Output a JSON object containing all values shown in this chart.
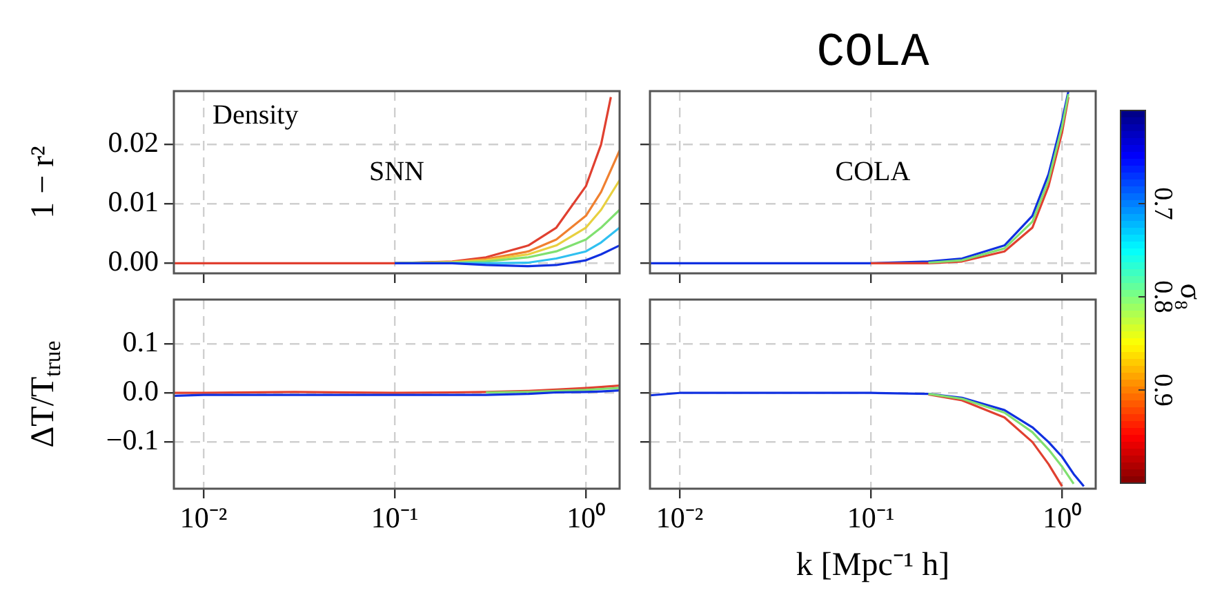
{
  "chart_data": [
    {
      "type": "line",
      "ylabel": "1 − r²",
      "annotations": [
        "Density",
        "SNN"
      ],
      "log": "x",
      "grid": true,
      "tick_labels": "y",
      "xlim": [
        0.007,
        1.5
      ],
      "ylim": [
        -0.0017,
        0.029
      ],
      "xticks": [
        {
          "value": 0.01,
          "label": null
        },
        {
          "value": 0.1,
          "label": null
        },
        {
          "value": 1,
          "label": null
        }
      ],
      "yticks": [
        {
          "value": 0,
          "label": "0.00"
        },
        {
          "value": 0.01,
          "label": "0.01"
        },
        {
          "value": 0.02,
          "label": "0.02"
        }
      ],
      "x": [
        0.1,
        0.2,
        0.3,
        0.5,
        0.7,
        1.0,
        1.2,
        1.5
      ],
      "series": [
        {
          "color": "#1030e0",
          "values": [
            0,
            0,
            -0.0003,
            -0.0005,
            -0.0003,
            0.0005,
            0.0015,
            0.003
          ]
        },
        {
          "color": "#30c0f0",
          "values": [
            0,
            0,
            0,
            0.0001,
            0.0008,
            0.002,
            0.0035,
            0.006
          ]
        },
        {
          "color": "#80e070",
          "values": [
            0,
            0.0001,
            0.0003,
            0.001,
            0.002,
            0.004,
            0.006,
            0.009
          ]
        },
        {
          "color": "#e8d040",
          "values": [
            0,
            0.0002,
            0.0005,
            0.0015,
            0.003,
            0.006,
            0.009,
            0.014
          ]
        },
        {
          "color": "#f08030",
          "values": [
            0,
            0.0002,
            0.0007,
            0.002,
            0.004,
            0.008,
            0.012,
            0.019
          ]
        },
        {
          "color": "#e04030",
          "x": [
            0.007,
            0.01,
            0.03,
            0.1,
            0.2,
            0.3,
            0.5,
            0.7,
            1.0,
            1.2,
            1.35
          ],
          "values": [
            0,
            0,
            0,
            0,
            0.0003,
            0.001,
            0.003,
            0.006,
            0.013,
            0.02,
            0.028
          ]
        }
      ]
    },
    {
      "type": "line",
      "title": "COLA",
      "annotations": [
        "COLA"
      ],
      "log": "x",
      "grid": true,
      "tick_labels": false,
      "xlim": [
        0.007,
        1.5
      ],
      "ylim": [
        -0.0017,
        0.029
      ],
      "clabel": "σ₈",
      "clim": [
        1.0,
        0.6
      ],
      "cticks": [
        0.7,
        0.8,
        0.9
      ],
      "xticks": [
        {
          "value": 0.01,
          "label": null
        },
        {
          "value": 0.1,
          "label": null
        },
        {
          "value": 1,
          "label": null
        }
      ],
      "yticks": [
        {
          "value": 0,
          "label": null
        },
        {
          "value": 0.01,
          "label": null
        },
        {
          "value": 0.02,
          "label": null
        }
      ],
      "x": [
        0.007,
        0.01,
        0.1,
        0.2,
        0.3,
        0.5,
        0.7,
        0.85,
        1.0,
        1.08
      ],
      "series": [
        {
          "color": "#80e070",
          "values": [
            null,
            null,
            null,
            0.0001,
            0.0005,
            0.0025,
            0.007,
            0.014,
            0.023,
            0.0285
          ]
        },
        {
          "color": "#e04030",
          "values": [
            null,
            null,
            0,
            0,
            0.0003,
            0.002,
            0.006,
            0.013,
            0.022,
            0.028
          ]
        },
        {
          "color": "#1030e0",
          "values": [
            0,
            0,
            0,
            0.0003,
            0.0008,
            0.003,
            0.008,
            0.015,
            0.024,
            0.029
          ]
        }
      ]
    },
    {
      "type": "line",
      "ylabel": "ΔT/T$_{true}$",
      "log": "x",
      "grid": true,
      "xlim": [
        0.007,
        1.5
      ],
      "ylim": [
        -0.195,
        0.19
      ],
      "xticks": [
        {
          "value": 0.01,
          "label": "10⁻²"
        },
        {
          "value": 0.1,
          "label": "10⁻¹"
        },
        {
          "value": 1,
          "label": "10⁰"
        }
      ],
      "yticks": [
        {
          "value": -0.1,
          "label": "−0.1"
        },
        {
          "value": 0,
          "label": "0.0"
        },
        {
          "value": 0.1,
          "label": "0.1"
        }
      ],
      "x": [
        0.007,
        0.01,
        0.03,
        0.1,
        0.2,
        0.3,
        0.5,
        0.7,
        1.0,
        1.2,
        1.5
      ],
      "series": [
        {
          "color": "#1030e0",
          "values": [
            -0.006,
            -0.004,
            -0.004,
            -0.004,
            -0.004,
            -0.004,
            -0.002,
            0.001,
            0.002,
            0.003,
            0.005
          ]
        },
        {
          "color": "#80e070",
          "values": [
            null,
            null,
            null,
            null,
            null,
            0.001,
            0.002,
            0.004,
            0.006,
            0.008,
            0.01
          ]
        },
        {
          "color": "#e04030",
          "values": [
            0,
            0,
            0.002,
            0,
            0.001,
            0.002,
            0.004,
            0.007,
            0.01,
            0.012,
            0.015
          ]
        }
      ]
    },
    {
      "type": "line",
      "xlabel": "k [Mpc⁻¹ h]",
      "log": "x",
      "grid": true,
      "tick_labels": "x",
      "xlim": [
        0.007,
        1.5
      ],
      "ylim": [
        -0.195,
        0.19
      ],
      "xticks": [
        {
          "value": 0.01,
          "label": "10⁻²"
        },
        {
          "value": 0.1,
          "label": "10⁻¹"
        },
        {
          "value": 1,
          "label": "10⁰"
        }
      ],
      "yticks": [
        {
          "value": -0.1,
          "label": null
        },
        {
          "value": 0,
          "label": null
        },
        {
          "value": 0.1,
          "label": null
        }
      ],
      "x": [
        0.007,
        0.01,
        0.1,
        0.2,
        0.3,
        0.5,
        0.7,
        0.85,
        1.0,
        1.15,
        1.3
      ],
      "series": [
        {
          "color": "#80e070",
          "values": [
            null,
            null,
            null,
            -0.002,
            -0.012,
            -0.04,
            -0.08,
            -0.115,
            -0.15,
            -0.185,
            null
          ]
        },
        {
          "color": "#e04030",
          "values": [
            null,
            null,
            null,
            -0.003,
            -0.015,
            -0.05,
            -0.1,
            -0.145,
            -0.19,
            null,
            null
          ]
        },
        {
          "color": "#1030e0",
          "values": [
            -0.005,
            0,
            0,
            -0.002,
            -0.01,
            -0.035,
            -0.07,
            -0.1,
            -0.13,
            -0.165,
            -0.19
          ]
        }
      ]
    }
  ]
}
